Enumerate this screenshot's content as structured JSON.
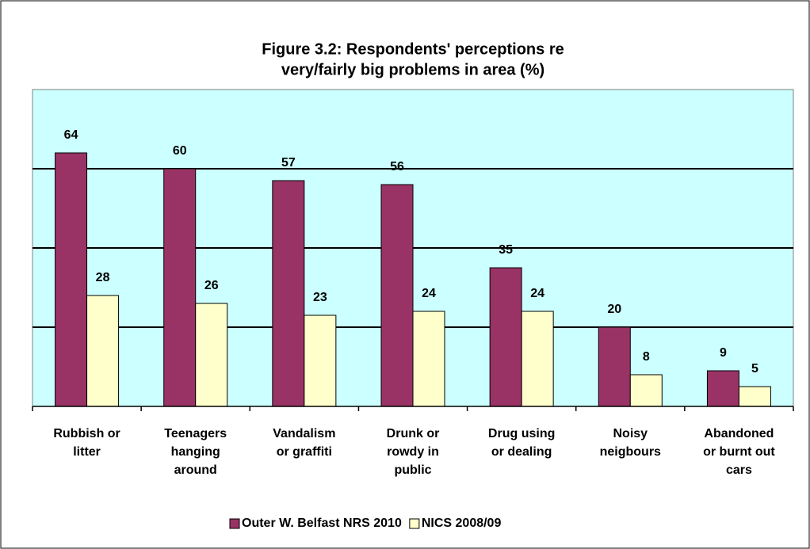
{
  "chart_data": {
    "type": "bar",
    "title": [
      "Figure 3.2: Respondents' perceptions re",
      "very/fairly big problems in area (%)"
    ],
    "categories": [
      [
        "Rubbish or",
        "litter"
      ],
      [
        "Teenagers",
        "hanging",
        "around"
      ],
      [
        "Vandalism",
        "or graffiti"
      ],
      [
        "Drunk or",
        "rowdy in",
        "public"
      ],
      [
        "Drug using",
        "or dealing"
      ],
      [
        "Noisy",
        "neigbours"
      ],
      [
        "Abandoned",
        "or burnt out",
        "cars"
      ]
    ],
    "series": [
      {
        "name": "Outer W. Belfast NRS 2010",
        "color": "#993366",
        "values": [
          64,
          60,
          57,
          56,
          35,
          20,
          9
        ]
      },
      {
        "name": "NICS 2008/09",
        "color": "#FFFFCC",
        "values": [
          28,
          26,
          23,
          24,
          24,
          8,
          5
        ]
      }
    ],
    "ylim": [
      0,
      80
    ],
    "yticks": [
      20,
      40,
      60
    ],
    "grid": true,
    "plot_background": "#CCFFFF",
    "legend": "bottom"
  }
}
